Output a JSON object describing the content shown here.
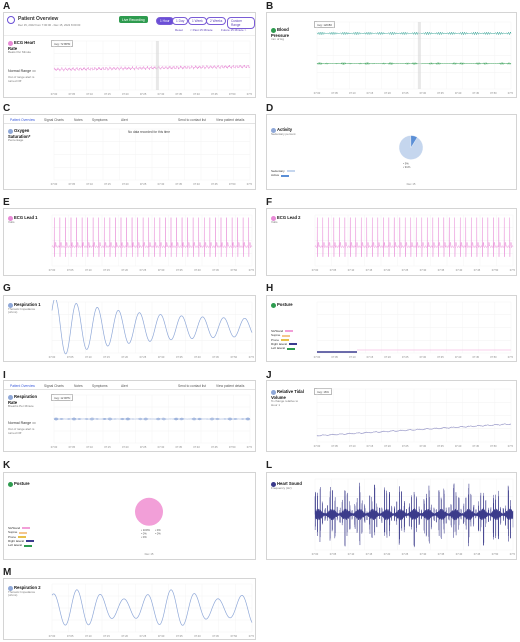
{
  "panel_letters": [
    "A",
    "B",
    "C",
    "D",
    "E",
    "F",
    "G",
    "H",
    "I",
    "J",
    "K",
    "L",
    "M"
  ],
  "colors": {
    "ecg": "#e88ad6",
    "resp": "#8fa8d8",
    "spo2_line": "#2a9d8f",
    "green": "#2e9b4f",
    "purple": "#6a4fd6",
    "heart": "#3a3a8a",
    "pie": "#f29fd8"
  },
  "A": {
    "title": "Patient Overview",
    "subtitle": "Dec 15, 2022 from 7:00:00 - Dec 15, 2022 8:00:00",
    "live_label": "Live Recording",
    "ranges": [
      "1 Hour",
      "1 Day",
      "1 Week",
      "2 Weeks",
      "Custom Range"
    ],
    "nav": [
      "Reset",
      "< Past 15 Minute",
      "Future 15 Minute >"
    ],
    "metric_title": "ECG Heart Rate",
    "metric_sub": "Beats Per Minute",
    "normal_range": "Normal Range",
    "alert_note": "Out of range alert is turned Off",
    "tooltip": "Avg: 72 BPM",
    "x_ticks": [
      "07:00",
      "07:05",
      "07:10",
      "07:15",
      "07:20",
      "07:25",
      "07:30",
      "07:35",
      "07:40",
      "07:45",
      "07:50",
      "07:55"
    ]
  },
  "B": {
    "metric_title": "Blood Pressure",
    "metric_sub": "mm of Hg",
    "tooltip": "Avg: 120/80"
  },
  "C": {
    "tabs": [
      "Patient Overview",
      "Signal Charts",
      "Notes",
      "Symptoms",
      "Alert"
    ],
    "tab_right": [
      "Send to contact list",
      "View patient details"
    ],
    "metric_title": "Oxygen Saturation*",
    "metric_sub": "Percentage",
    "no_data": "No data recorded for this time"
  },
  "D": {
    "metric_title": "Activity",
    "metric_sub": "Sedentary percent",
    "legend": [
      "Sedentary",
      "Active"
    ],
    "chart_data": {
      "type": "pie",
      "labels": [
        "Sedentary",
        "Active"
      ],
      "values": [
        91,
        9
      ],
      "value_labels": [
        "9%",
        "91%"
      ],
      "x_label": "Dec 15"
    }
  },
  "E": {
    "metric_title": "ECG Lead 1",
    "metric_sub": "Volts"
  },
  "F": {
    "metric_title": "ECG Lead 2",
    "metric_sub": "Volts"
  },
  "G": {
    "metric_title": "Respiration 1",
    "metric_sub": "Thoracic Impedance (ohms)"
  },
  "H": {
    "metric_title": "Posture",
    "legend": [
      "Sit/Stand",
      "Supine",
      "Prone",
      "Right lateral",
      "Left lateral"
    ]
  },
  "I": {
    "tabs": [
      "Patient Overview",
      "Signal Charts",
      "Notes",
      "Symptoms",
      "Alert"
    ],
    "tab_right": [
      "Send to contact list",
      "View patient details"
    ],
    "metric_title": "Respiration Rate",
    "metric_sub": "Breaths Per Minute",
    "normal_range": "Normal Range",
    "alert_note": "Out of range alert is turned Off",
    "tooltip": "Avg: 12 RPM"
  },
  "J": {
    "metric_title": "Relative Tidal Volume",
    "metric_sub": "% change relative to Hour 1",
    "tooltip": "Avg: 16%",
    "x_label": "Dec 15"
  },
  "K": {
    "metric_title": "Posture",
    "legend": [
      "Sit/Stand",
      "Supine",
      "Prone",
      "Right lateral",
      "Left lateral"
    ],
    "chart_data": {
      "type": "pie",
      "labels": [
        "Sit/Stand",
        "Supine",
        "Prone",
        "Right lateral",
        "Left lateral"
      ],
      "values": [
        100,
        0,
        0,
        0,
        0
      ],
      "value_labels": [
        "100%",
        "0%",
        "0%",
        "0%",
        "0%"
      ],
      "x_label": "Dec 15"
    }
  },
  "L": {
    "metric_title": "Heart Sound",
    "metric_sub": "Frequency (Hz)"
  },
  "M": {
    "metric_title": "Respiration 2",
    "metric_sub": "Thoracic Impedance (ohms)"
  }
}
